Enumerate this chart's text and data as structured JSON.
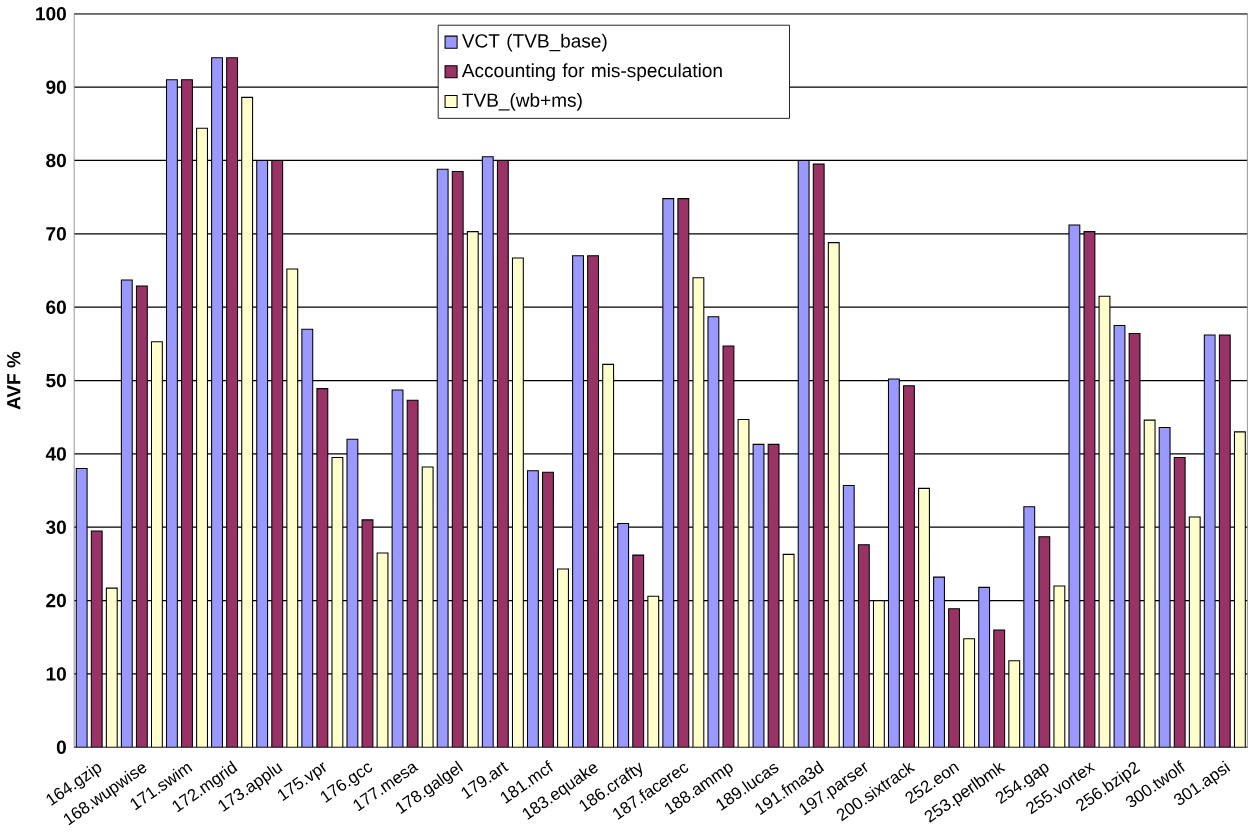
{
  "chart_data": {
    "type": "bar",
    "ylabel": "AVF %",
    "categories": [
      "164.gzip",
      "168.wupwise",
      "171.swim",
      "172.mgrid",
      "173.applu",
      "175.vpr",
      "176.gcc",
      "177.mesa",
      "178.galgel",
      "179.art",
      "181.mcf",
      "183.equake",
      "186.crafty",
      "187.facerec",
      "188.ammp",
      "189.lucas",
      "191.fma3d",
      "197.parser",
      "200.sixtrack",
      "252.eon",
      "253.perlbmk",
      "254.gap",
      "255.vortex",
      "256.bzip2",
      "300.twolf",
      "301.apsi"
    ],
    "series": [
      {
        "name": "VCT (TVB_base)",
        "color": "#9999ff",
        "values": [
          38,
          63.7,
          91,
          94,
          80,
          57,
          42,
          48.7,
          78.8,
          80.5,
          37.7,
          67,
          30.5,
          74.8,
          58.7,
          41.3,
          80,
          35.7,
          50.2,
          23.2,
          21.8,
          32.8,
          71.2,
          57.5,
          43.6,
          56.2
        ]
      },
      {
        "name": "Accounting for mis-speculation",
        "color": "#993366",
        "values": [
          29.5,
          62.9,
          91,
          94,
          80,
          48.9,
          31,
          47.3,
          78.5,
          80,
          37.5,
          67,
          26.2,
          74.8,
          54.7,
          41.3,
          79.5,
          27.6,
          49.3,
          18.9,
          16,
          28.7,
          70.3,
          56.4,
          39.5,
          56.2
        ]
      },
      {
        "name": "TVB_(wb+ms)",
        "color": "#ffffcc",
        "values": [
          21.7,
          55.3,
          84.4,
          88.6,
          65.2,
          39.5,
          26.5,
          38.2,
          70.3,
          66.7,
          24.3,
          52.2,
          20.6,
          64,
          44.7,
          26.3,
          68.8,
          20,
          35.3,
          14.8,
          11.8,
          22,
          61.5,
          44.6,
          31.4,
          43
        ]
      }
    ],
    "ylim": [
      0,
      100
    ],
    "yticks": [
      0,
      10,
      20,
      30,
      40,
      50,
      60,
      70,
      80,
      90,
      100
    ],
    "grid": "y",
    "legend": "top"
  }
}
